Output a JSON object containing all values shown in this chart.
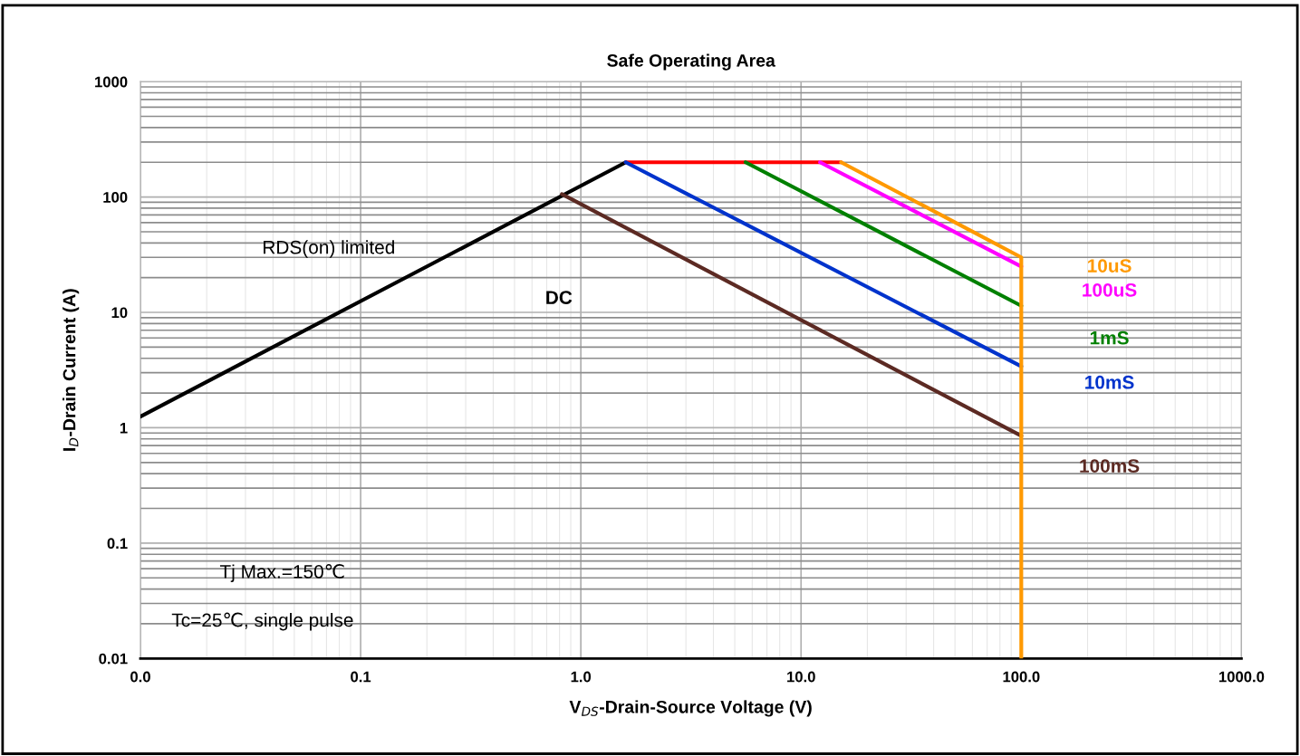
{
  "chart_data": {
    "type": "line",
    "title": "Safe Operating Area",
    "xlabel": "V$_{DS}$-Drain-Source Voltage (V)",
    "ylabel": "I$_{D}$-Drain Current (A)",
    "log": "xy",
    "grid": true,
    "legend": false,
    "marker": "none",
    "line_style": "solid",
    "xlim": [
      0.01,
      1000
    ],
    "ylim": [
      0.01,
      1000
    ],
    "xticks": [
      {
        "value": 0.01,
        "label": "0.0"
      },
      {
        "value": 0.1,
        "label": "0.1"
      },
      {
        "value": 1,
        "label": "1.0"
      },
      {
        "value": 10,
        "label": "10.0"
      },
      {
        "value": 100,
        "label": "100.0"
      },
      {
        "value": 1000,
        "label": "1000.0"
      }
    ],
    "yticks": [
      0.01,
      0.1,
      1,
      10,
      100,
      1000
    ],
    "series": [
      {
        "color": "#000000",
        "x": [
          0.01,
          1.6
        ],
        "values": [
          1.25,
          200
        ]
      },
      {
        "color": "#ff0000",
        "x": [
          1.6,
          15.2
        ],
        "values": [
          200,
          200
        ]
      },
      {
        "name": "10uS",
        "color": "#ff9900",
        "x": [
          15.2,
          100,
          100
        ],
        "values": [
          200,
          30,
          0.01
        ]
      },
      {
        "name": "100uS",
        "color": "#ff00ff",
        "x": [
          12.2,
          100
        ],
        "values": [
          200,
          25
        ]
      },
      {
        "name": "1mS",
        "color": "#008000",
        "x": [
          5.6,
          100
        ],
        "values": [
          200,
          11.4
        ]
      },
      {
        "name": "10mS",
        "color": "#0033cc",
        "x": [
          1.6,
          100
        ],
        "values": [
          200,
          3.4
        ]
      },
      {
        "name": "100mS",
        "color": "#5c2a23",
        "x": [
          0.82,
          100
        ],
        "values": [
          106,
          0.85
        ]
      }
    ],
    "annotations": [
      "RDS(on) limited",
      "DC",
      "Tj Max.=150℃",
      "Tc=25℃, single pulse"
    ]
  }
}
